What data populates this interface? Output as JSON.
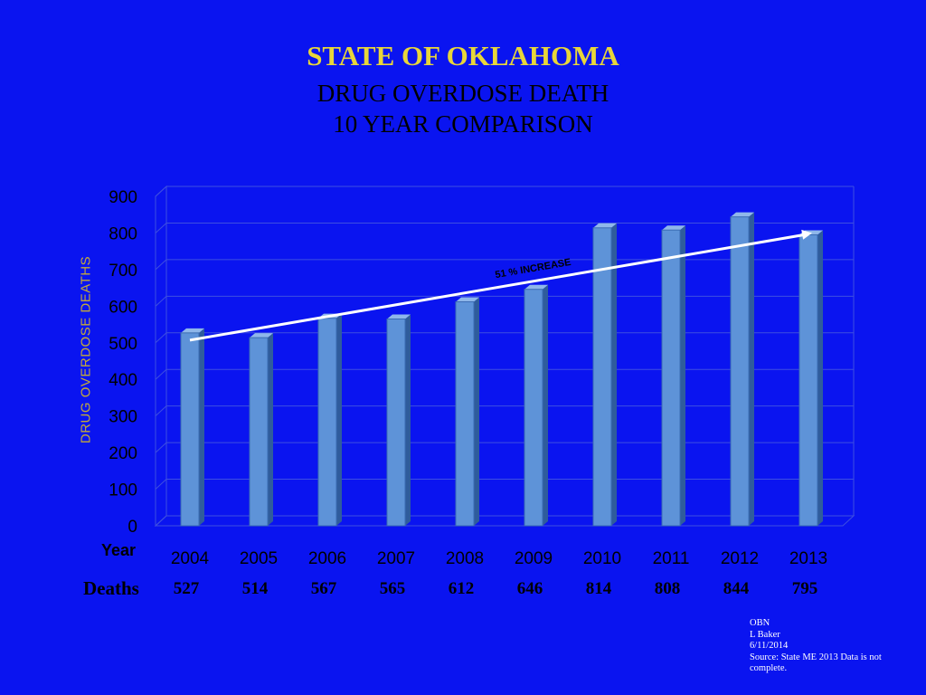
{
  "title_main": "STATE OF OKLAHOMA",
  "title_line2": "DRUG OVERDOSE DEATH",
  "title_line3": "10 YEAR COMPARISON",
  "y_axis_label": "DRUG OVERDOSE DEATHS",
  "x_axis_label": "Year",
  "deaths_row_label": "Deaths",
  "trend_label": "51 % INCREASE",
  "note": {
    "line1": "OBN",
    "line2": "L Baker",
    "line3": "6/11/2014",
    "line4": "Source:  State ME  2013 Data is not complete."
  },
  "colors": {
    "background": "#0a14f0",
    "title_main": "#e8d63a",
    "bar_front": "#5e93d8",
    "bar_side": "#2f5c9c",
    "bar_top": "#8fb7ea",
    "trend_line": "#ffffff",
    "gridline": "#3e4fe0",
    "y_axis_label": "#c4a93a"
  },
  "chart_data": {
    "type": "bar",
    "title": "STATE OF OKLAHOMA DRUG OVERDOSE DEATH 10 YEAR COMPARISON",
    "xlabel": "Year",
    "ylabel": "DRUG OVERDOSE DEATHS",
    "categories": [
      "2004",
      "2005",
      "2006",
      "2007",
      "2008",
      "2009",
      "2010",
      "2011",
      "2012",
      "2013"
    ],
    "values": [
      527,
      514,
      567,
      565,
      612,
      646,
      814,
      808,
      844,
      795
    ],
    "ylim": [
      0,
      900
    ],
    "yticks": [
      0,
      100,
      200,
      300,
      400,
      500,
      600,
      700,
      800,
      900
    ],
    "grid": true,
    "style": "3d-column",
    "annotation": {
      "text": "51 % INCREASE",
      "type": "trend-arrow",
      "from": "2004",
      "to": "2013"
    }
  }
}
